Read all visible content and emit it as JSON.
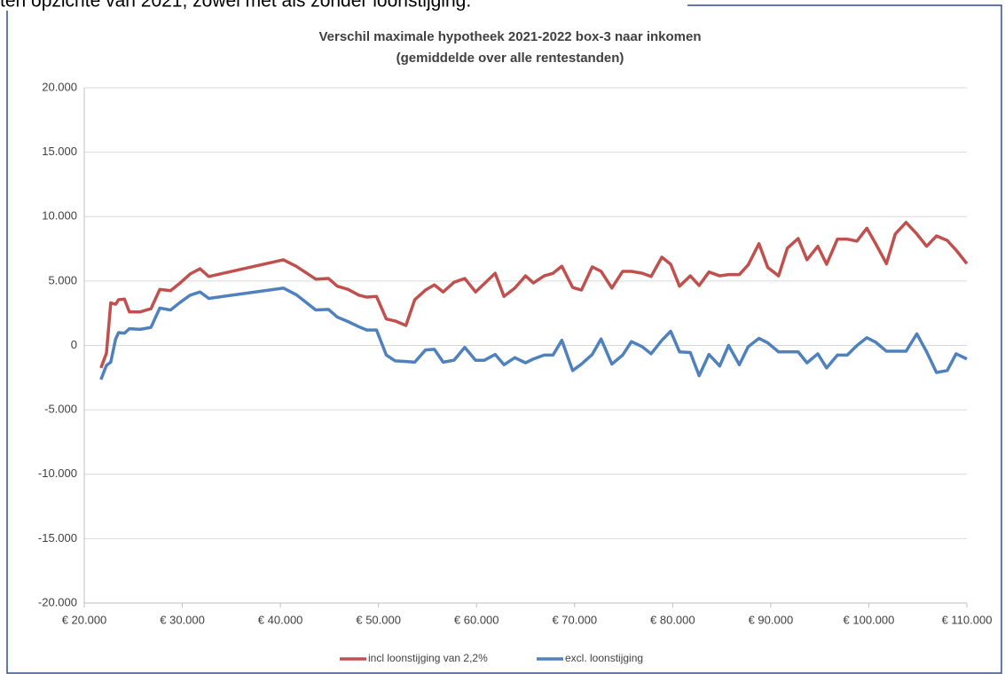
{
  "caption": "ten opzichte van 2021, zowel met als zonder loonstijging.",
  "chart_data": {
    "type": "line",
    "title": "Verschil maximale hypotheek 2021-2022 box-3 naar inkomen",
    "subtitle": "(gemiddelde over alle rentestanden)",
    "x": [
      21700,
      22260,
      22700,
      23200,
      23500,
      24100,
      24600,
      25700,
      26800,
      27700,
      28800,
      29700,
      30800,
      31800,
      32700,
      40300,
      41600,
      43600,
      44900,
      45800,
      46900,
      48000,
      48800,
      49800,
      50800,
      51700,
      52800,
      53700,
      54800,
      55700,
      56600,
      57700,
      58800,
      59900,
      60800,
      61900,
      62800,
      63900,
      65000,
      65800,
      66900,
      67800,
      68700,
      69800,
      70700,
      71800,
      72700,
      73800,
      74900,
      75800,
      76900,
      77800,
      78900,
      79800,
      80700,
      81800,
      82700,
      83700,
      84800,
      85700,
      86800,
      87700,
      88800,
      89700,
      90800,
      91700,
      92800,
      93700,
      94800,
      95700,
      96800,
      97800,
      98800,
      99800,
      100700,
      101800,
      102700,
      103800,
      104900,
      105900,
      106900,
      108000,
      108900,
      110000
    ],
    "series": [
      {
        "name": "incl loonstijging van 2,2%",
        "color": "#c0504d",
        "values": [
          -1750,
          -600,
          3300,
          3200,
          3550,
          3600,
          2600,
          2600,
          2850,
          4350,
          4250,
          4800,
          5550,
          5950,
          5350,
          6650,
          6150,
          5150,
          5200,
          4600,
          4350,
          3900,
          3750,
          3800,
          2050,
          1900,
          1550,
          3550,
          4300,
          4700,
          4150,
          4900,
          5200,
          4150,
          4800,
          5600,
          3800,
          4450,
          5400,
          4850,
          5400,
          5600,
          6150,
          4500,
          4300,
          6100,
          5750,
          4450,
          5750,
          5750,
          5600,
          5350,
          6850,
          6300,
          4600,
          5400,
          4650,
          5700,
          5400,
          5500,
          5500,
          6250,
          7900,
          6050,
          5400,
          7550,
          8300,
          6650,
          7700,
          6300,
          8250,
          8250,
          8100,
          9100,
          7900,
          6350,
          8650,
          9550,
          8650,
          7700,
          8500,
          8150,
          7400,
          6350
        ]
      },
      {
        "name": "excl. loonstijging",
        "color": "#4f81bd",
        "values": [
          -2650,
          -1550,
          -1300,
          500,
          1000,
          950,
          1300,
          1250,
          1400,
          2900,
          2750,
          3300,
          3900,
          4150,
          3650,
          4450,
          3950,
          2750,
          2800,
          2200,
          1850,
          1450,
          1200,
          1200,
          -750,
          -1200,
          -1250,
          -1300,
          -350,
          -300,
          -1300,
          -1150,
          -150,
          -1150,
          -1150,
          -700,
          -1500,
          -950,
          -1350,
          -1050,
          -750,
          -750,
          400,
          -1950,
          -1450,
          -700,
          500,
          -1450,
          -750,
          300,
          -100,
          -650,
          400,
          1100,
          -500,
          -550,
          -2350,
          -700,
          -1600,
          0,
          -1500,
          -100,
          550,
          200,
          -500,
          -500,
          -500,
          -1350,
          -650,
          -1750,
          -750,
          -750,
          0,
          600,
          250,
          -450,
          -450,
          -450,
          900,
          -500,
          -2100,
          -1950,
          -650,
          -1050
        ]
      }
    ],
    "xlim": [
      20000,
      110000
    ],
    "xticks": [
      {
        "value": 20000,
        "label": "€ 20.000"
      },
      {
        "value": 30000,
        "label": "€ 30.000"
      },
      {
        "value": 40000,
        "label": "€ 40.000"
      },
      {
        "value": 50000,
        "label": "€ 50.000"
      },
      {
        "value": 60000,
        "label": "€ 60.000"
      },
      {
        "value": 70000,
        "label": "€ 70.000"
      },
      {
        "value": 80000,
        "label": "€ 80.000"
      },
      {
        "value": 90000,
        "label": "€ 90.000"
      },
      {
        "value": 100000,
        "label": "€ 100.000"
      },
      {
        "value": 110000,
        "label": "€ 110.000"
      }
    ],
    "ylim": [
      -20000,
      20000
    ],
    "yticks": [
      {
        "value": -20000,
        "label": "-20.000"
      },
      {
        "value": -15000,
        "label": "-15.000"
      },
      {
        "value": -10000,
        "label": "-10.000"
      },
      {
        "value": -5000,
        "label": "-5.000"
      },
      0,
      {
        "value": 5000,
        "label": "5.000"
      },
      {
        "value": 10000,
        "label": "10.000"
      },
      {
        "value": 15000,
        "label": "15.000"
      },
      {
        "value": 20000,
        "label": "20.000"
      }
    ],
    "grid": true,
    "legend": "bottom"
  }
}
